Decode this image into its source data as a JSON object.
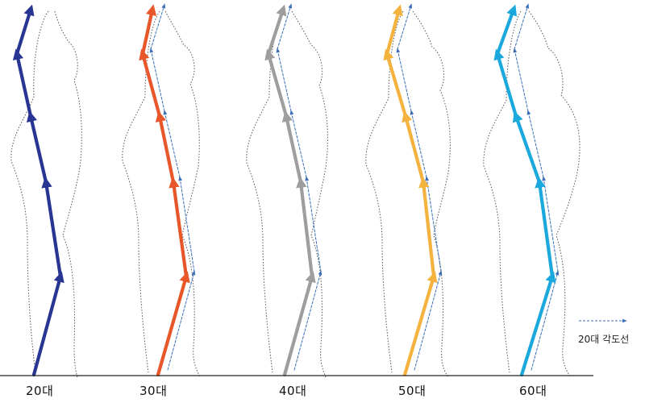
{
  "figures": [
    {
      "label": "20대",
      "color": "#283593",
      "polyline": [
        [
          42,
          465
        ],
        [
          75,
          343
        ],
        [
          57,
          226
        ],
        [
          38,
          144
        ],
        [
          21,
          67
        ],
        [
          38,
          12
        ]
      ]
    },
    {
      "label": "30대",
      "color": "#E8572A",
      "polyline": [
        [
          196,
          465
        ],
        [
          231,
          343
        ],
        [
          215,
          226
        ],
        [
          198,
          144
        ],
        [
          177,
          67
        ],
        [
          189,
          12
        ]
      ]
    },
    {
      "label": "40대",
      "color": "#9E9E9E",
      "polyline": [
        [
          353,
          465
        ],
        [
          387,
          343
        ],
        [
          373,
          226
        ],
        [
          355,
          144
        ],
        [
          333,
          67
        ],
        [
          351,
          12
        ]
      ]
    },
    {
      "label": "50대",
      "color": "#F4B23E",
      "polyline": [
        [
          502,
          465
        ],
        [
          538,
          343
        ],
        [
          525,
          226
        ],
        [
          503,
          144
        ],
        [
          480,
          67
        ],
        [
          495,
          12
        ]
      ]
    },
    {
      "label": "60대",
      "color": "#1BA9DD",
      "polyline": [
        [
          647,
          465
        ],
        [
          685,
          343
        ],
        [
          669,
          226
        ],
        [
          640,
          144
        ],
        [
          617,
          67
        ],
        [
          637,
          12
        ]
      ]
    }
  ],
  "reference_line": {
    "color": "#3A6FB7"
  },
  "legend": {
    "text": "20대 각도선"
  }
}
